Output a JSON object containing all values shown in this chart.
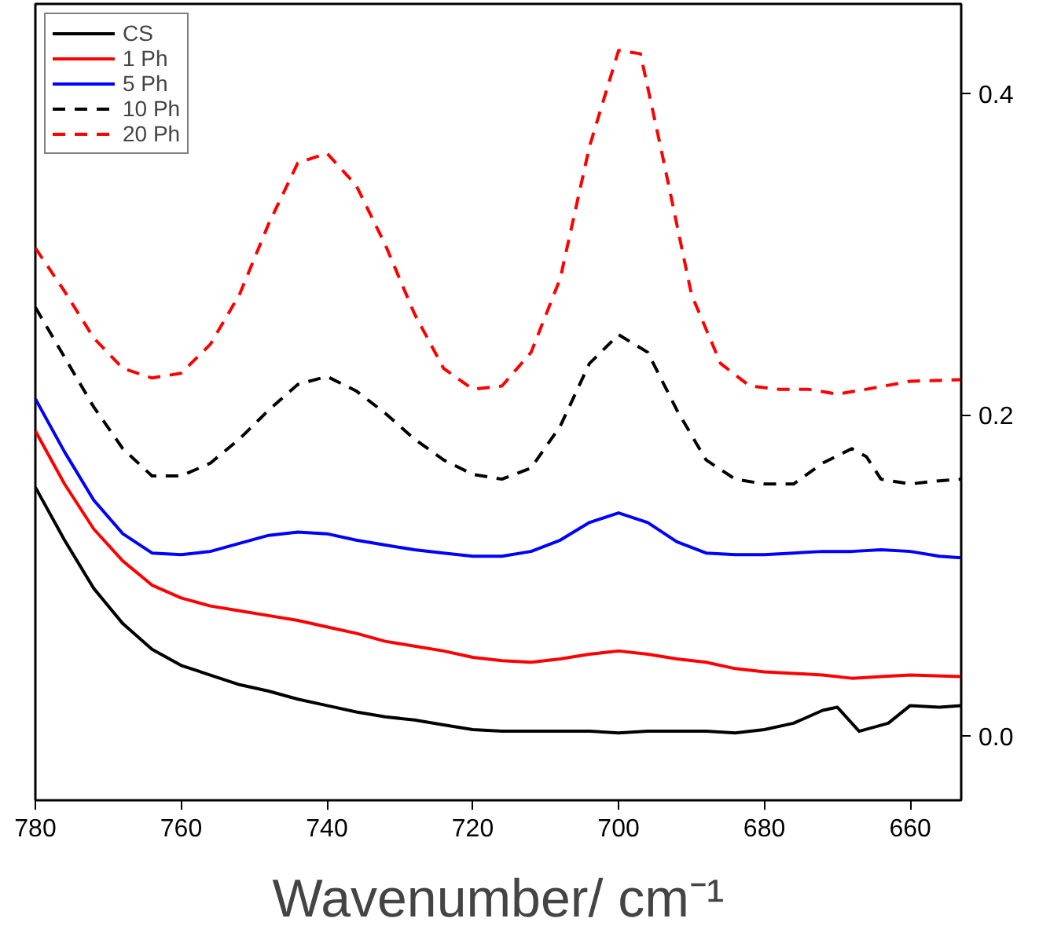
{
  "chart_data": {
    "type": "line",
    "xlabel": "Wavenumber/ cm⁻¹",
    "xlim": [
      780,
      653
    ],
    "ylim": [
      -0.04,
      0.456
    ],
    "xticks": [
      780,
      760,
      740,
      720,
      700,
      680,
      660
    ],
    "yticks": [
      {
        "value": 0,
        "label": "0.0"
      },
      {
        "value": 0.2,
        "label": "0.2"
      },
      {
        "value": 0.4,
        "label": "0.4"
      }
    ],
    "legend": "top left",
    "grid": false,
    "marker": "none",
    "series": [
      {
        "name": "CS",
        "color": "#000000",
        "line_style": "solid",
        "x": [
          780,
          776,
          772,
          768,
          764,
          760,
          756,
          752,
          748,
          744,
          740,
          736,
          732,
          728,
          724,
          720,
          716,
          712,
          708,
          704,
          700,
          696,
          692,
          688,
          684,
          680,
          676,
          672,
          670,
          667,
          663,
          660,
          656,
          653
        ],
        "values": [
          0.155,
          0.122,
          0.092,
          0.07,
          0.054,
          0.044,
          0.038,
          0.032,
          0.028,
          0.023,
          0.019,
          0.015,
          0.012,
          0.01,
          0.007,
          0.004,
          0.003,
          0.003,
          0.003,
          0.003,
          0.002,
          0.003,
          0.003,
          0.003,
          0.002,
          0.004,
          0.008,
          0.016,
          0.018,
          0.003,
          0.008,
          0.019,
          0.018,
          0.019
        ]
      },
      {
        "name": "1 Ph",
        "color": "#ff0000",
        "line_style": "solid",
        "x": [
          780,
          776,
          772,
          768,
          764,
          760,
          756,
          752,
          748,
          744,
          740,
          736,
          732,
          728,
          724,
          720,
          716,
          712,
          708,
          704,
          700,
          696,
          692,
          688,
          684,
          680,
          676,
          672,
          668,
          664,
          660,
          653
        ],
        "values": [
          0.19,
          0.157,
          0.129,
          0.109,
          0.094,
          0.086,
          0.081,
          0.078,
          0.075,
          0.072,
          0.068,
          0.064,
          0.059,
          0.056,
          0.053,
          0.049,
          0.047,
          0.046,
          0.048,
          0.051,
          0.053,
          0.051,
          0.048,
          0.046,
          0.042,
          0.04,
          0.039,
          0.038,
          0.036,
          0.037,
          0.038,
          0.037
        ]
      },
      {
        "name": "5 Ph",
        "color": "#0000ff",
        "line_style": "solid",
        "x": [
          780,
          776,
          772,
          768,
          764,
          760,
          756,
          752,
          748,
          744,
          740,
          736,
          732,
          728,
          724,
          720,
          716,
          712,
          708,
          704,
          700,
          696,
          692,
          688,
          684,
          680,
          676,
          672,
          668,
          664,
          660,
          656,
          653
        ],
        "values": [
          0.21,
          0.177,
          0.147,
          0.126,
          0.114,
          0.113,
          0.115,
          0.12,
          0.125,
          0.127,
          0.126,
          0.122,
          0.119,
          0.116,
          0.114,
          0.112,
          0.112,
          0.115,
          0.122,
          0.133,
          0.139,
          0.133,
          0.121,
          0.114,
          0.113,
          0.113,
          0.114,
          0.115,
          0.115,
          0.116,
          0.115,
          0.112,
          0.111
        ]
      },
      {
        "name": "10 Ph",
        "color": "#000000",
        "line_style": "dashed",
        "x": [
          780,
          776,
          772,
          768,
          764,
          760,
          756,
          752,
          748,
          744,
          740,
          736,
          732,
          728,
          724,
          720,
          716,
          712,
          708,
          704,
          700,
          696,
          692,
          688,
          684,
          680,
          676,
          672,
          668,
          666,
          664,
          660,
          656,
          653
        ],
        "values": [
          0.267,
          0.236,
          0.205,
          0.179,
          0.162,
          0.162,
          0.17,
          0.185,
          0.203,
          0.219,
          0.224,
          0.215,
          0.201,
          0.185,
          0.172,
          0.163,
          0.16,
          0.167,
          0.193,
          0.232,
          0.25,
          0.239,
          0.203,
          0.172,
          0.16,
          0.157,
          0.157,
          0.17,
          0.179,
          0.174,
          0.16,
          0.157,
          0.159,
          0.16
        ]
      },
      {
        "name": "20 Ph",
        "color": "#ff0000",
        "line_style": "dashed",
        "x": [
          780,
          776,
          772,
          768,
          764,
          760,
          756,
          752,
          748,
          744,
          740,
          736,
          732,
          728,
          724,
          720,
          716,
          712,
          708,
          704,
          700,
          697,
          694,
          690,
          686,
          682,
          678,
          674,
          670,
          666,
          660,
          653
        ],
        "values": [
          0.304,
          0.277,
          0.248,
          0.229,
          0.223,
          0.226,
          0.244,
          0.275,
          0.319,
          0.357,
          0.363,
          0.343,
          0.306,
          0.263,
          0.229,
          0.216,
          0.218,
          0.239,
          0.285,
          0.367,
          0.427,
          0.425,
          0.362,
          0.275,
          0.232,
          0.218,
          0.216,
          0.216,
          0.213,
          0.216,
          0.221,
          0.222
        ]
      }
    ]
  }
}
